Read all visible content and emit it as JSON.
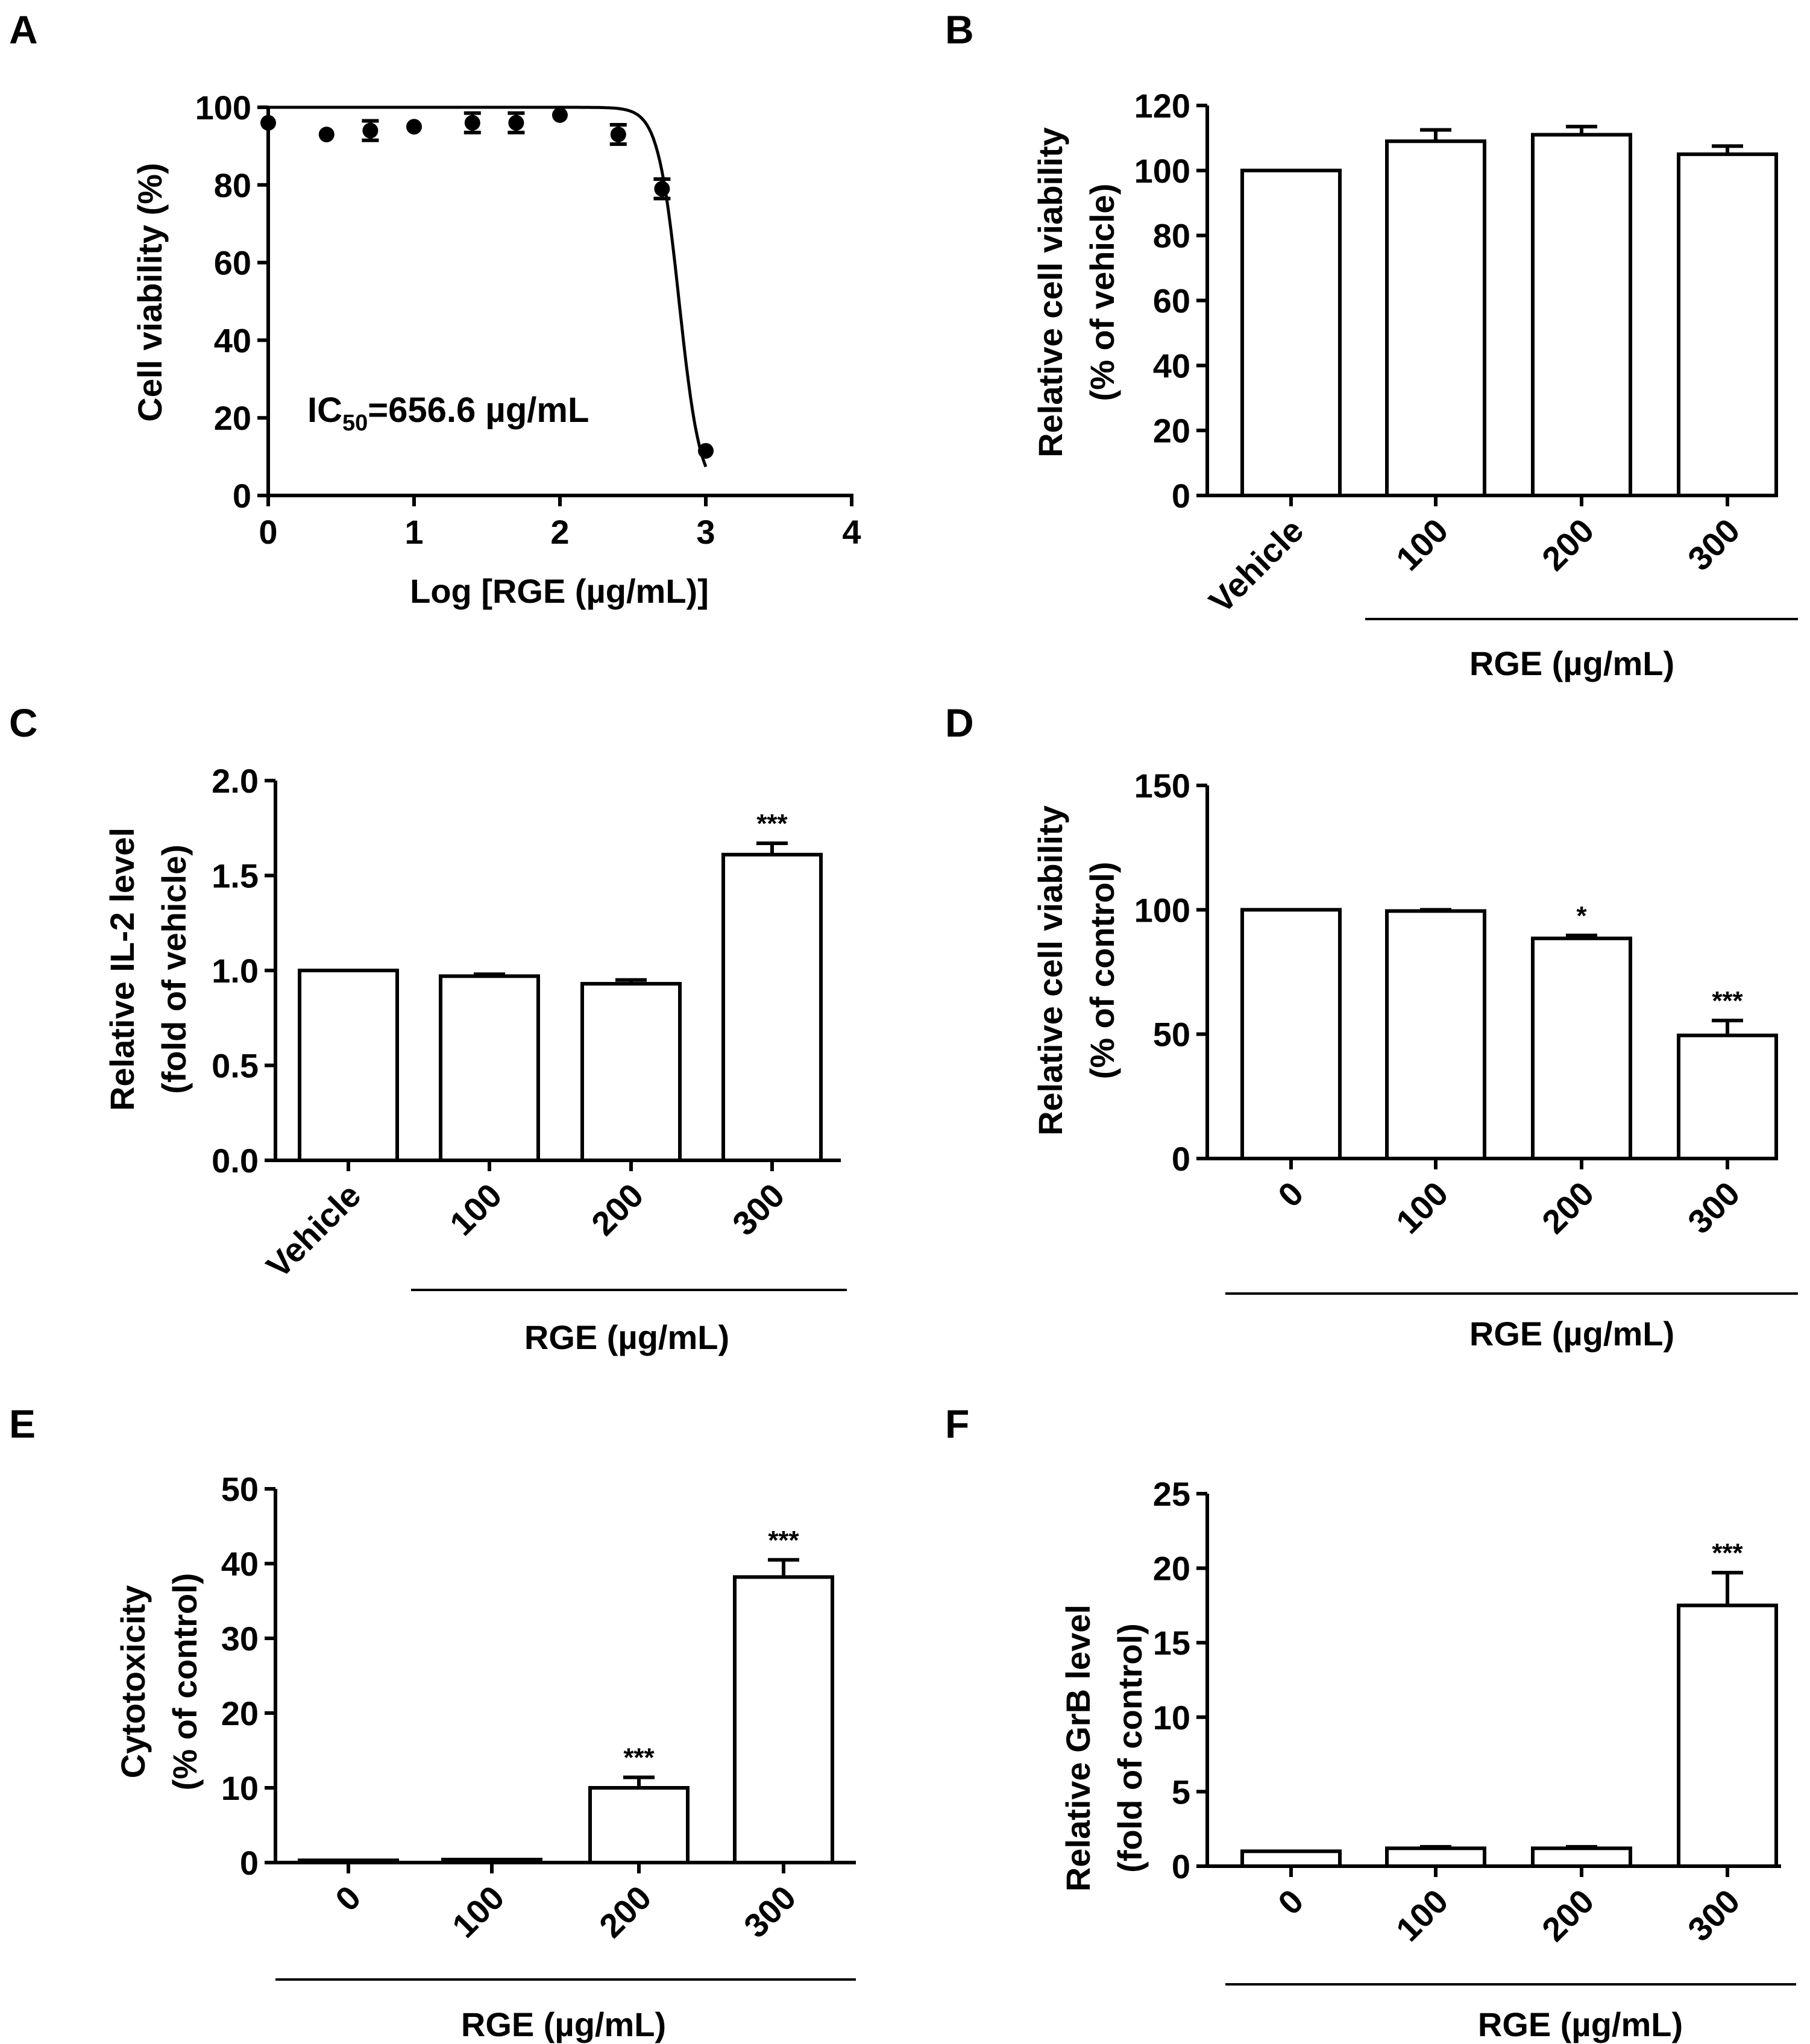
{
  "chart_data": [
    {
      "panel": "A",
      "type": "scatter",
      "ylabel": "Cell viability (%)",
      "xlabel": "Log [RGE (µg/mL)]",
      "xlim": [
        0,
        4
      ],
      "ylim": [
        0,
        100
      ],
      "xticks": [
        "0",
        "1",
        "2",
        "3",
        "4"
      ],
      "yticks": [
        "0",
        "20",
        "40",
        "60",
        "80",
        "100"
      ],
      "annotation": {
        "prefix": "IC",
        "sub": "50",
        "suffix": "=656.6 µg/mL"
      },
      "points": [
        {
          "x": 0.0,
          "y": 96,
          "err": 1
        },
        {
          "x": 0.4,
          "y": 93,
          "err": 0.5
        },
        {
          "x": 0.7,
          "y": 94,
          "err": 2.5
        },
        {
          "x": 1.0,
          "y": 95,
          "err": 0.5
        },
        {
          "x": 1.4,
          "y": 96,
          "err": 2.5
        },
        {
          "x": 1.7,
          "y": 96,
          "err": 2.5
        },
        {
          "x": 2.0,
          "y": 98,
          "err": 0.5
        },
        {
          "x": 2.4,
          "y": 93,
          "err": 2.5
        },
        {
          "x": 2.7,
          "y": 79,
          "err": 2.5
        },
        {
          "x": 3.0,
          "y": 11.5,
          "err": 0.5
        }
      ],
      "fit": {
        "top": 100,
        "bottom": 0,
        "logIC50": 2.817,
        "hill": 6
      }
    },
    {
      "panel": "B",
      "type": "bar",
      "ylabel": [
        "Relative cell viability",
        "(% of vehicle)"
      ],
      "xlabel": "RGE (µg/mL)",
      "categories": [
        "Vehicle",
        "100",
        "200",
        "300"
      ],
      "values": [
        100,
        109,
        111,
        105
      ],
      "errors": [
        0,
        3.5,
        2.5,
        2.5
      ],
      "stars": [
        "",
        "",
        "",
        ""
      ],
      "ylim": [
        0,
        120
      ],
      "yticks": [
        "0",
        "20",
        "40",
        "60",
        "80",
        "100",
        "120"
      ]
    },
    {
      "panel": "C",
      "type": "bar",
      "ylabel": [
        "Relative IL-2 level",
        "(fold of vehicle)"
      ],
      "xlabel": "RGE (µg/mL)",
      "categories": [
        "Vehicle",
        "100",
        "200",
        "300"
      ],
      "values": [
        1.0,
        0.97,
        0.93,
        1.61
      ],
      "errors": [
        0,
        0.01,
        0.02,
        0.06
      ],
      "stars": [
        "",
        "",
        "",
        "***"
      ],
      "ylim": [
        0,
        2
      ],
      "yticks": [
        "0.0",
        "0.5",
        "1.0",
        "1.5",
        "2.0"
      ]
    },
    {
      "panel": "D",
      "type": "bar",
      "ylabel": [
        "Relative cell viability",
        "(% of control)"
      ],
      "xlabel": "RGE (µg/mL)",
      "categories": [
        "0",
        "100",
        "200",
        "300"
      ],
      "values": [
        100,
        99.5,
        88.5,
        49.5
      ],
      "errors": [
        0,
        0.5,
        1.2,
        6
      ],
      "stars": [
        "",
        "",
        "*",
        "***"
      ],
      "ylim": [
        0,
        150
      ],
      "yticks": [
        "0",
        "50",
        "100",
        "150"
      ]
    },
    {
      "panel": "E",
      "type": "bar",
      "ylabel": [
        "Cytotoxicity",
        "(% of control)"
      ],
      "xlabel": "RGE (µg/mL)",
      "categories": [
        "0",
        "100",
        "200",
        "300"
      ],
      "values": [
        0.3,
        0.4,
        10,
        38.2
      ],
      "errors": [
        0,
        0,
        1.4,
        2.3
      ],
      "stars": [
        "",
        "",
        "***",
        "***"
      ],
      "ylim": [
        0,
        50
      ],
      "yticks": [
        "0",
        "10",
        "20",
        "30",
        "40",
        "50"
      ]
    },
    {
      "panel": "F",
      "type": "bar",
      "ylabel": [
        "Relative GrB  level",
        "(fold of control)"
      ],
      "xlabel": "RGE (µg/mL)",
      "categories": [
        "0",
        "100",
        "200",
        "300"
      ],
      "values": [
        1.0,
        1.2,
        1.2,
        17.5
      ],
      "errors": [
        0,
        0.1,
        0.1,
        2.2
      ],
      "stars": [
        "",
        "",
        "",
        "***"
      ],
      "ylim": [
        0,
        25
      ],
      "yticks": [
        "0",
        "5",
        "10",
        "15",
        "20",
        "25"
      ]
    }
  ]
}
